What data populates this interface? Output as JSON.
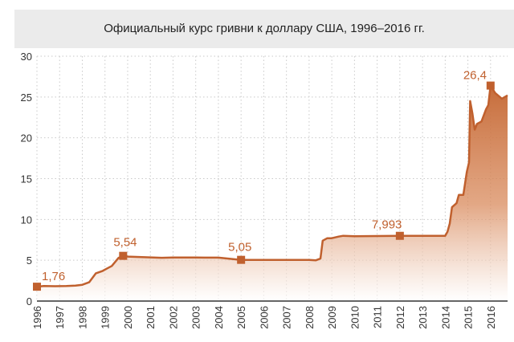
{
  "colors": {
    "accent": "#c0602e",
    "fill_top": "#c66c3a",
    "fill_bottom": "#ffffff",
    "grid": "#c9c9c9",
    "title_bg": "#ebebeb"
  },
  "chart_data": {
    "type": "area",
    "title": "Официальный курс гривни к доллару США, 1996–2016 гг.",
    "xlabel": "",
    "ylabel": "",
    "xlim": [
      1996,
      2016.75
    ],
    "ylim": [
      0,
      30
    ],
    "yticks": [
      0,
      5,
      10,
      15,
      20,
      25,
      30
    ],
    "xticks": [
      "1996",
      "1997",
      "1998",
      "1999",
      "2000",
      "2001",
      "2002",
      "2003",
      "2004",
      "2005",
      "2006",
      "2007",
      "2008",
      "2009",
      "2010",
      "2011",
      "2012",
      "2013",
      "2014",
      "2015",
      "2016"
    ],
    "grid": true,
    "series": [
      {
        "x": [
          1996.0,
          1996.3,
          1996.8,
          1997.3,
          1997.7,
          1998.0,
          1998.3,
          1998.6,
          1998.7,
          1998.9,
          1999.1,
          1999.3,
          1999.6,
          1999.8,
          2000.0,
          2000.5,
          2001.0,
          2001.5,
          2002.0,
          2003.0,
          2004.0,
          2005.0,
          2005.3,
          2006.0,
          2007.0,
          2008.0,
          2008.3,
          2008.5,
          2008.6,
          2008.8,
          2009.0,
          2009.3,
          2009.5,
          2010.0,
          2011.0,
          2012.0,
          2013.0,
          2014.0,
          2014.1,
          2014.2,
          2014.3,
          2014.5,
          2014.6,
          2014.8,
          2014.95,
          2015.05,
          2015.1,
          2015.2,
          2015.3,
          2015.4,
          2015.6,
          2015.8,
          2015.9,
          2016.0,
          2016.2,
          2016.5,
          2016.75
        ],
        "values": [
          1.76,
          1.85,
          1.82,
          1.85,
          1.9,
          2.0,
          2.3,
          3.4,
          3.5,
          3.7,
          4.0,
          4.3,
          5.3,
          5.54,
          5.45,
          5.4,
          5.35,
          5.3,
          5.33,
          5.33,
          5.32,
          5.05,
          5.05,
          5.05,
          5.05,
          5.05,
          5.0,
          5.2,
          7.4,
          7.7,
          7.7,
          7.9,
          8.0,
          7.95,
          7.97,
          7.993,
          7.99,
          7.99,
          8.5,
          9.5,
          11.5,
          12.0,
          13.0,
          13.0,
          15.8,
          17.0,
          24.5,
          23.0,
          21.0,
          21.7,
          22.0,
          23.5,
          24.0,
          26.4,
          25.5,
          24.8,
          25.2
        ]
      }
    ],
    "markers": [
      {
        "x": 1996.0,
        "y": 1.76,
        "label": "1,76"
      },
      {
        "x": 1999.8,
        "y": 5.54,
        "label": "5,54"
      },
      {
        "x": 2005.0,
        "y": 5.05,
        "label": "5,05"
      },
      {
        "x": 2012.0,
        "y": 7.993,
        "label": "7,993"
      },
      {
        "x": 2016.0,
        "y": 26.4,
        "label": "26,4"
      }
    ]
  }
}
